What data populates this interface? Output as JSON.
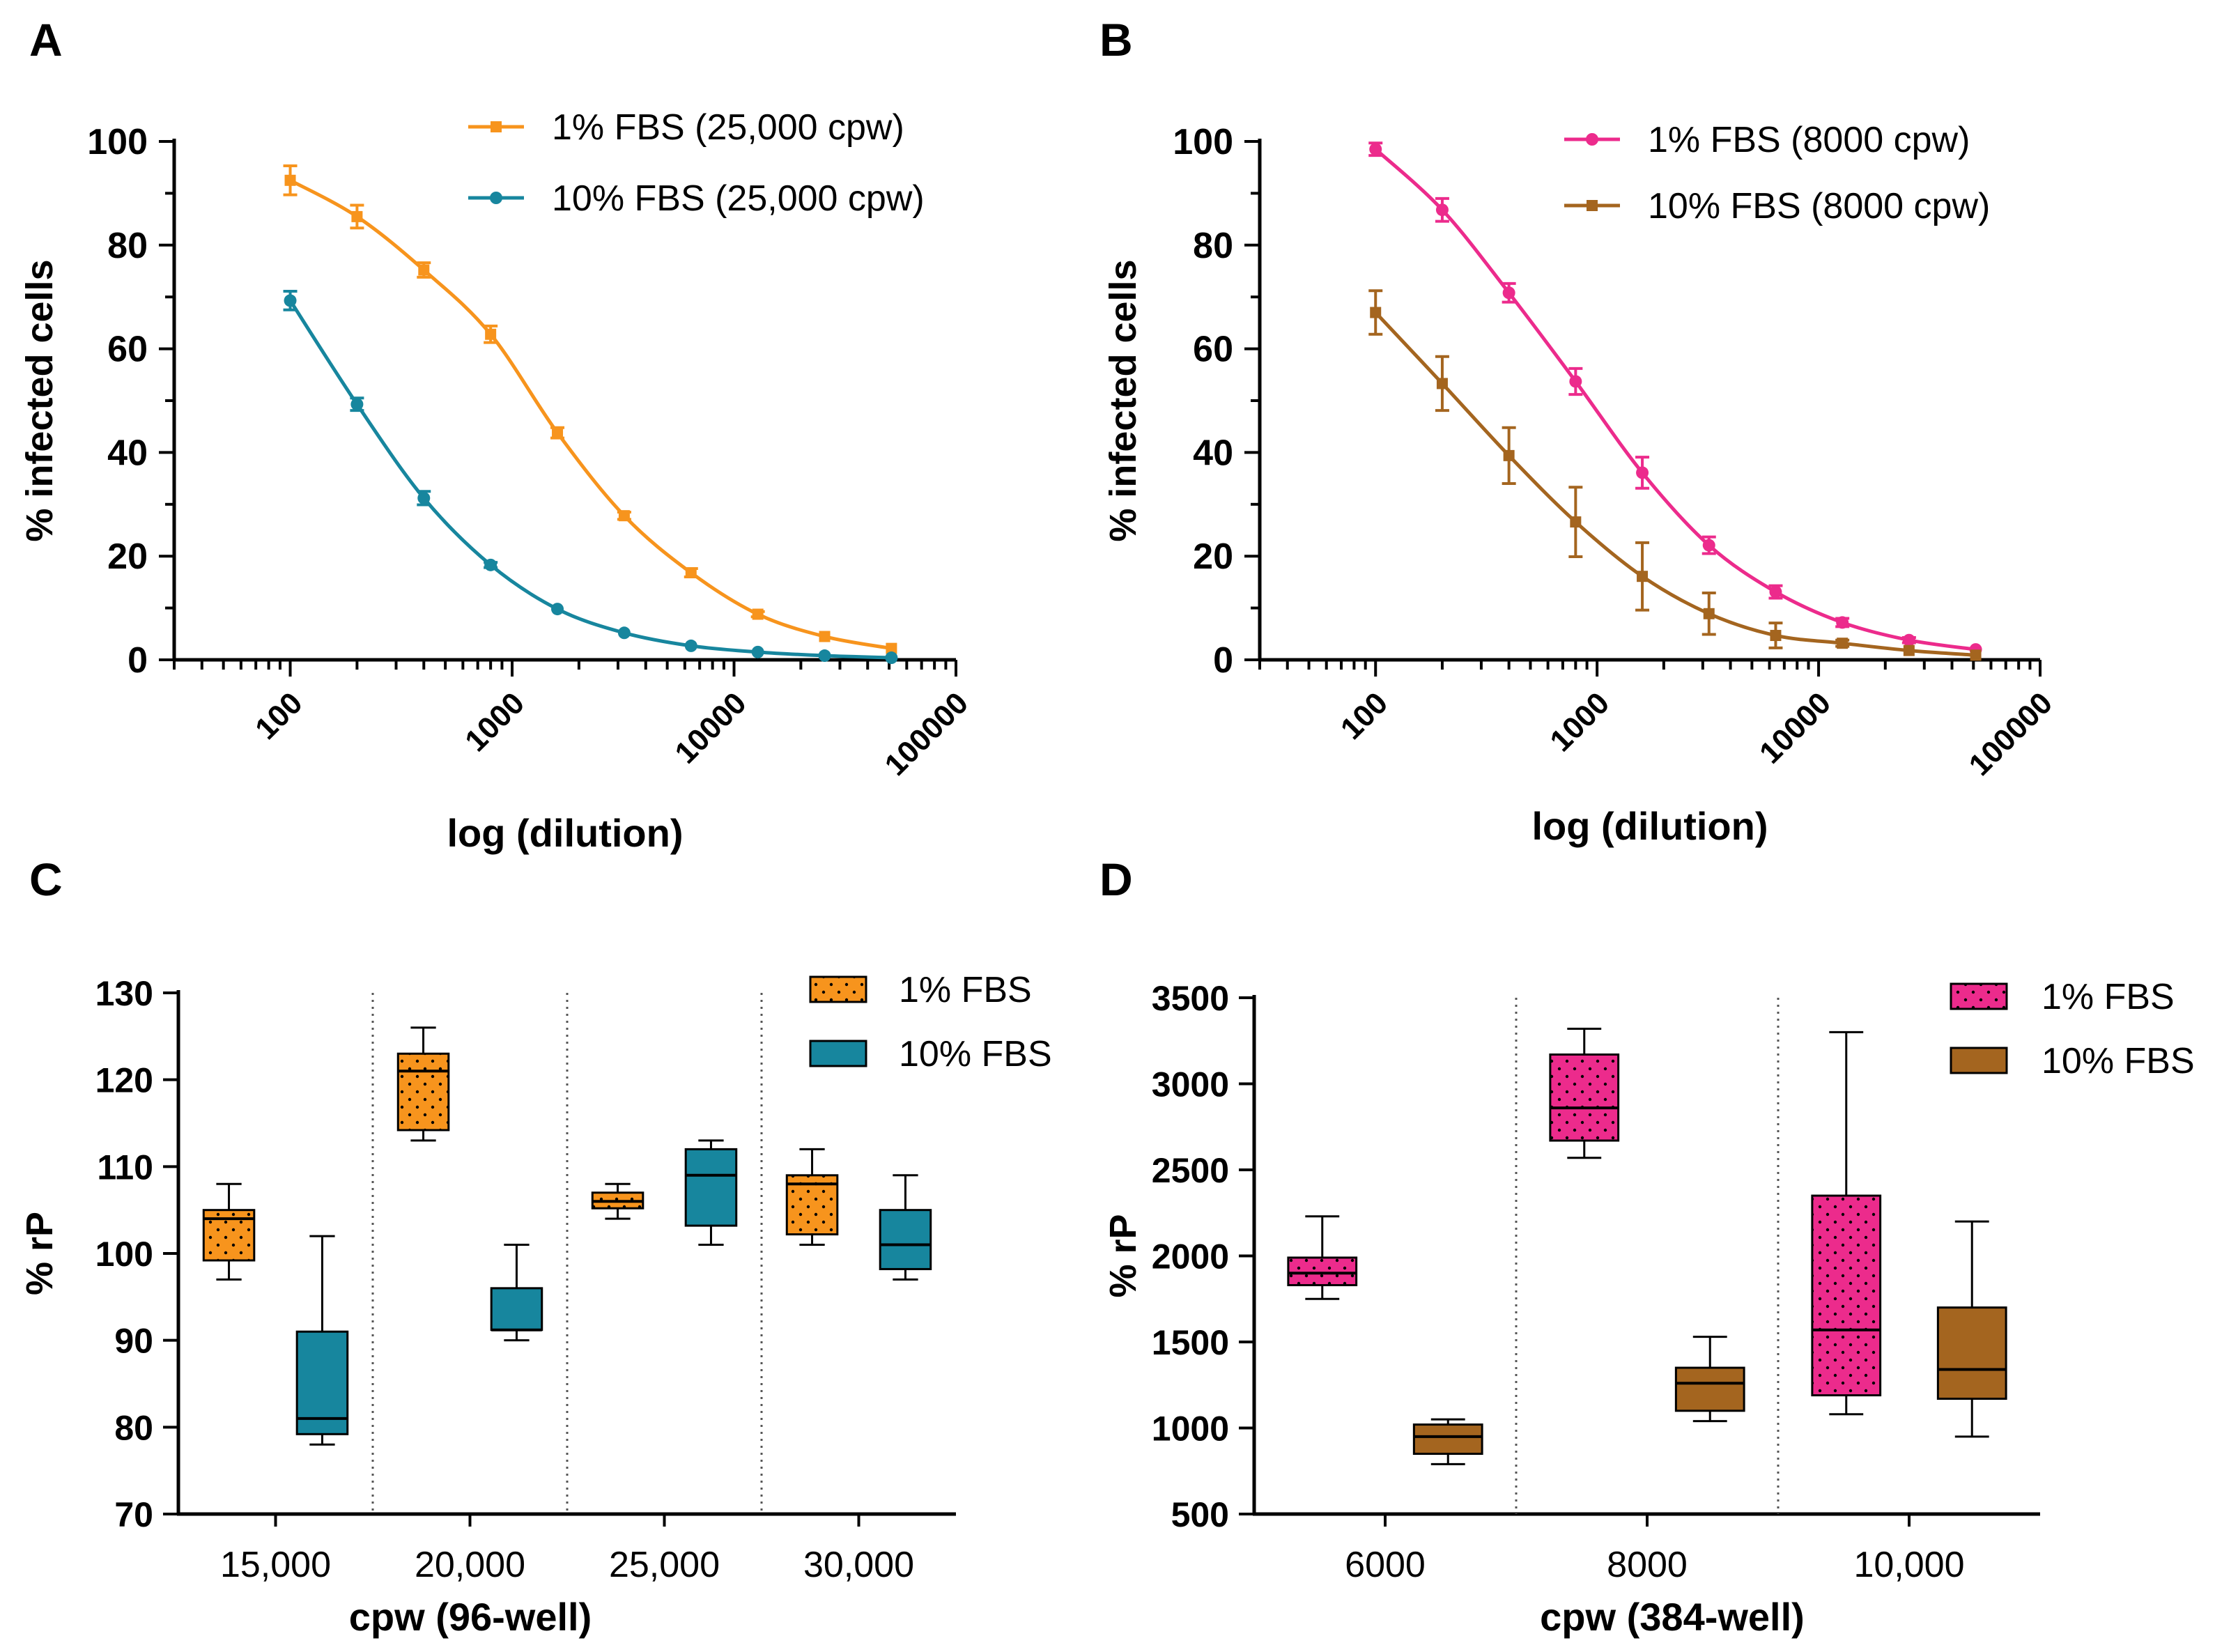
{
  "figure": {
    "panels": [
      "A",
      "B",
      "C",
      "D"
    ]
  },
  "colors": {
    "orange": "#F7941D",
    "teal": "#17869E",
    "magenta": "#EC2B8C",
    "brown": "#A4651F",
    "axis": "#000000"
  },
  "chart_data": [
    {
      "panel": "A",
      "type": "line",
      "xscale": "log",
      "xlabel": "log (dilution)",
      "ylabel": "% infected cells",
      "xlim": [
        30,
        100000
      ],
      "ylim": [
        0,
        100
      ],
      "xticks": [
        "100",
        "1000",
        "10000",
        "100000"
      ],
      "yticks": [
        "0",
        "20",
        "40",
        "60",
        "80",
        "100"
      ],
      "legend_position": "top-right",
      "x": [
        100,
        200,
        400,
        800,
        1600,
        3200,
        6400,
        12800,
        25600,
        51200
      ],
      "series": [
        {
          "name": "1% FBS (25,000 cpw)",
          "color": "#F7941D",
          "marker": "square",
          "values": [
            92.5,
            85.5,
            75.2,
            62.8,
            43.8,
            27.8,
            16.8,
            8.8,
            4.5,
            2.2
          ],
          "errors": [
            2.8,
            2.2,
            1.4,
            1.6,
            1.0,
            0.7,
            0.8,
            0.5,
            0.4,
            0.3
          ]
        },
        {
          "name": "10% FBS (25,000 cpw)",
          "color": "#17869E",
          "marker": "circle",
          "values": [
            69.3,
            49.3,
            31.2,
            18.3,
            9.8,
            5.2,
            2.7,
            1.5,
            0.8,
            0.4
          ],
          "errors": [
            1.8,
            1.2,
            1.3,
            0.5,
            0.4,
            0.3,
            0.2,
            0.2,
            0.1,
            0.1
          ]
        }
      ]
    },
    {
      "panel": "B",
      "type": "line",
      "xscale": "log",
      "xlabel": "log (dilution)",
      "ylabel": "% infected cells",
      "xlim": [
        30,
        100000
      ],
      "ylim": [
        0,
        100
      ],
      "xticks": [
        "100",
        "1000",
        "10000",
        "100000"
      ],
      "yticks": [
        "0",
        "20",
        "40",
        "60",
        "80",
        "100"
      ],
      "legend_position": "top-right",
      "x": [
        100,
        200,
        400,
        800,
        1600,
        3200,
        6400,
        12800,
        25600,
        51200
      ],
      "series": [
        {
          "name": "1% FBS (8000 cpw)",
          "color": "#EC2B8C",
          "marker": "circle",
          "values": [
            98.5,
            86.8,
            70.8,
            53.7,
            36.1,
            22.1,
            13.1,
            7.2,
            3.8,
            2.0
          ],
          "errors": [
            1.2,
            2.2,
            1.8,
            2.5,
            3.0,
            1.6,
            1.2,
            0.8,
            0.5,
            0.3
          ]
        },
        {
          "name": "10% FBS (8000 cpw)",
          "color": "#A4651F",
          "marker": "square",
          "values": [
            67.0,
            53.3,
            39.4,
            26.6,
            16.1,
            8.9,
            4.7,
            3.2,
            1.8,
            0.9
          ],
          "errors": [
            4.2,
            5.2,
            5.4,
            6.7,
            6.5,
            4.0,
            2.4,
            0.6,
            0.4,
            0.3
          ]
        }
      ]
    },
    {
      "panel": "C",
      "type": "box",
      "xlabel": "cpw (96-well)",
      "ylabel": "% rP",
      "ylim": [
        70,
        130
      ],
      "yticks": [
        "70",
        "80",
        "90",
        "100",
        "110",
        "120",
        "130"
      ],
      "categories": [
        "15,000",
        "20,000",
        "25,000",
        "30,000"
      ],
      "legend_position": "top-right",
      "series": [
        {
          "name": "1%  FBS",
          "color": "#F7941D",
          "pattern": "dots",
          "boxes": [
            {
              "min": 97,
              "q1": 99.2,
              "median": 104,
              "q3": 105,
              "max": 108
            },
            {
              "min": 113,
              "q1": 114.2,
              "median": 121,
              "q3": 123,
              "max": 126
            },
            {
              "min": 104,
              "q1": 105.2,
              "median": 106,
              "q3": 107,
              "max": 108
            },
            {
              "min": 101,
              "q1": 102.2,
              "median": 108,
              "q3": 109,
              "max": 112
            }
          ]
        },
        {
          "name": "10% FBS",
          "color": "#17869E",
          "pattern": "none",
          "boxes": [
            {
              "min": 78,
              "q1": 79.2,
              "median": 81,
              "q3": 91,
              "max": 102
            },
            {
              "min": 90,
              "q1": 91.2,
              "median": 91.2,
              "q3": 96,
              "max": 101
            },
            {
              "min": 101,
              "q1": 103.2,
              "median": 109,
              "q3": 112,
              "max": 113
            },
            {
              "min": 97,
              "q1": 98.2,
              "median": 101,
              "q3": 105,
              "max": 109
            }
          ]
        }
      ]
    },
    {
      "panel": "D",
      "type": "box",
      "xlabel": "cpw (384-well)",
      "ylabel": "% rP",
      "ylim": [
        500,
        3500
      ],
      "yticks": [
        "500",
        "1000",
        "1500",
        "2000",
        "2500",
        "3000",
        "3500"
      ],
      "categories": [
        "6000",
        "8000",
        "10,000"
      ],
      "legend_position": "top-right",
      "series": [
        {
          "name": "1% FBS",
          "color": "#EC2B8C",
          "pattern": "dots",
          "boxes": [
            {
              "min": 1750,
              "q1": 1830,
              "median": 1900,
              "q3": 1990,
              "max": 2230
            },
            {
              "min": 2570,
              "q1": 2670,
              "median": 2860,
              "q3": 3170,
              "max": 3320
            },
            {
              "min": 1080,
              "q1": 1190,
              "median": 1570,
              "q3": 2350,
              "max": 3300
            }
          ]
        },
        {
          "name": "10% FBS",
          "color": "#A4651F",
          "pattern": "none",
          "boxes": [
            {
              "min": 790,
              "q1": 850,
              "median": 950,
              "q3": 1020,
              "max": 1050
            },
            {
              "min": 1040,
              "q1": 1100,
              "median": 1260,
              "q3": 1350,
              "max": 1530
            },
            {
              "min": 950,
              "q1": 1170,
              "median": 1340,
              "q3": 1700,
              "max": 2200
            }
          ]
        }
      ]
    }
  ]
}
